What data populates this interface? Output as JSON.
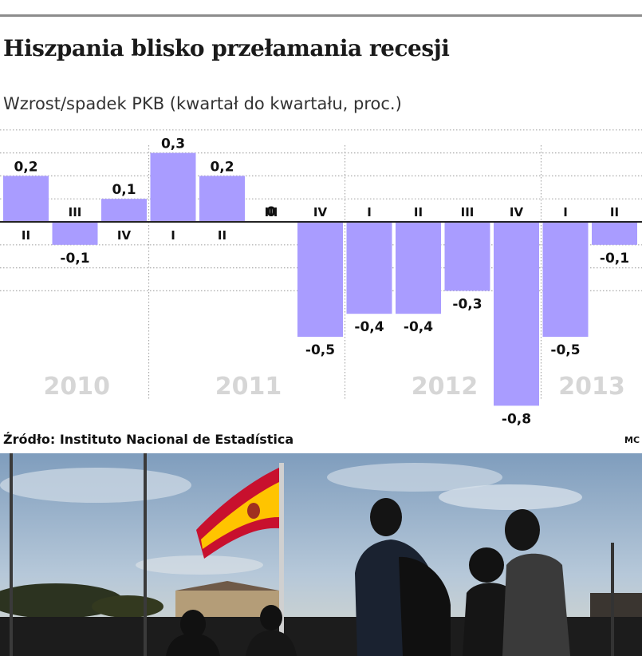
{
  "title": "Hiszpania blisko przełamania recesji",
  "subtitle": "Wzrost/spadek PKB (kwartał do kwartału, proc.)",
  "source": "Źródło: Instituto Nacional de Estadística",
  "credit": "MC",
  "colors": {
    "bar": "#a99cff",
    "grid": "#aaaaaa",
    "year_label": "#d6d6d6",
    "topline": "#8c8c8c"
  },
  "chart_data": {
    "type": "bar",
    "title": "Hiszpania blisko przełamania recesji",
    "subtitle": "Wzrost/spadek PKB (kwartał do kwartału, proc.)",
    "categories": [
      "II",
      "III",
      "IV",
      "I",
      "II",
      "III",
      "IV",
      "I",
      "II",
      "III",
      "IV",
      "I",
      "II"
    ],
    "values": [
      0.2,
      -0.1,
      0.1,
      0.3,
      0.2,
      0,
      -0.5,
      -0.4,
      -0.4,
      -0.3,
      -0.8,
      -0.5,
      -0.1
    ],
    "value_labels": [
      "0,2",
      "-0,1",
      "0,1",
      "0,3",
      "0,2",
      "0",
      "-0,5",
      "-0,4",
      "-0,4",
      "-0,3",
      "-0,8",
      "-0,5",
      "-0,1"
    ],
    "years": [
      {
        "label": "2010",
        "start": 0,
        "count": 3
      },
      {
        "label": "2011",
        "start": 3,
        "count": 4
      },
      {
        "label": "2012",
        "start": 7,
        "count": 4
      },
      {
        "label": "2013",
        "start": 11,
        "count": 2
      }
    ],
    "ylim": [
      -0.8,
      0.3
    ],
    "grid": true
  },
  "photo": {
    "description_icon": "spanish-flag-icon",
    "flag_colors": [
      "#c8102e",
      "#ffc400"
    ],
    "sky_color": "#a9c0d6"
  }
}
